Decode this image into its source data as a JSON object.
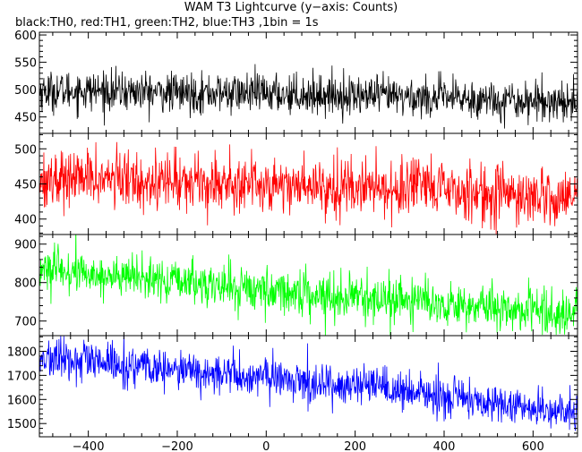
{
  "chart_data": {
    "type": "line",
    "title": "WAM T3 Lightcurve (y−axis: Counts)",
    "subtitle": "black:TH0, red:TH1, green:TH2, blue:TH3 ,1bin = 1s",
    "xlabel": "",
    "ylabel": "",
    "xlim": [
      -510,
      700
    ],
    "x_ticks": [
      "−400",
      "−200",
      "0",
      "200",
      "400",
      "600"
    ],
    "x_tick_values": [
      -400,
      -200,
      0,
      200,
      400,
      600
    ],
    "bin_seconds": 1,
    "grid": false,
    "series": [
      {
        "color": "#000000",
        "ylim": [
          420,
          605
        ],
        "y_ticks": [
          "450",
          "500",
          "550",
          "600"
        ],
        "y_tick_values": [
          450,
          500,
          550,
          600
        ],
        "x": [
          -510,
          -400,
          -200,
          0,
          200,
          400,
          600,
          700
        ],
        "y": [
          497,
          498,
          494,
          493,
          489,
          485,
          479,
          478
        ],
        "noise_sd": 18
      },
      {
        "color": "#ff0000",
        "ylim": [
          378,
          522
        ],
        "y_ticks": [
          "400",
          "450",
          "500"
        ],
        "y_tick_values": [
          400,
          450,
          500
        ],
        "x": [
          -510,
          -400,
          -200,
          0,
          200,
          400,
          600,
          700
        ],
        "y": [
          457,
          458,
          454,
          450,
          446,
          441,
          432,
          430
        ],
        "noise_sd": 20
      },
      {
        "color": "#00ff00",
        "ylim": [
          662,
          925
        ],
        "y_ticks": [
          "700",
          "800",
          "900"
        ],
        "y_tick_values": [
          700,
          800,
          900
        ],
        "x": [
          -510,
          -400,
          -200,
          0,
          200,
          400,
          600,
          700
        ],
        "y": [
          835,
          822,
          802,
          780,
          762,
          746,
          728,
          718
        ],
        "noise_sd": 28
      },
      {
        "color": "#0000ff",
        "ylim": [
          1445,
          1865
        ],
        "y_ticks": [
          "1500",
          "1600",
          "1700",
          "1800"
        ],
        "y_tick_values": [
          1500,
          1600,
          1700,
          1800
        ],
        "x": [
          -510,
          -400,
          -200,
          0,
          200,
          400,
          600,
          700
        ],
        "y": [
          1770,
          1755,
          1718,
          1690,
          1655,
          1610,
          1565,
          1540
        ],
        "noise_sd": 42
      }
    ]
  }
}
